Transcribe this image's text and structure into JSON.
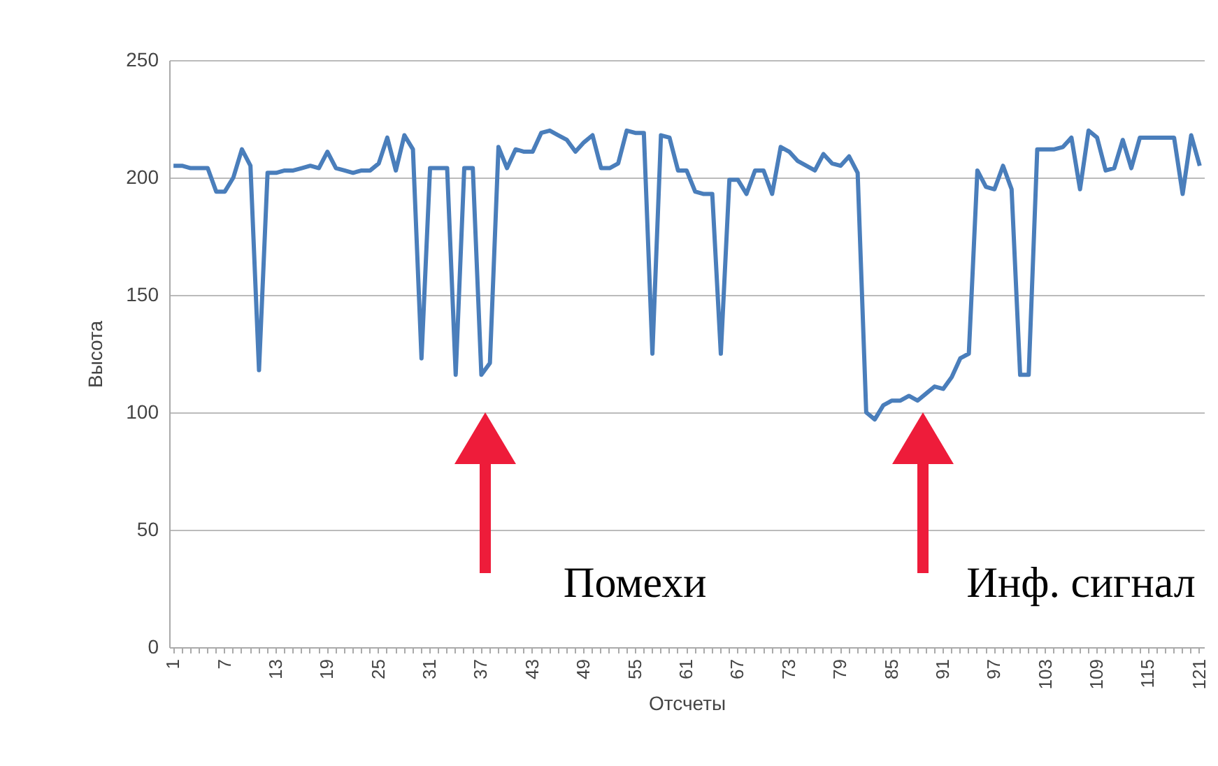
{
  "chart_data": {
    "type": "line",
    "xlabel": "Отсчеты",
    "ylabel": "Высота",
    "categories": [
      "1",
      null,
      null,
      null,
      null,
      null,
      "7",
      null,
      null,
      null,
      null,
      null,
      "13",
      null,
      null,
      null,
      null,
      null,
      "19",
      null,
      null,
      null,
      null,
      null,
      "25",
      null,
      null,
      null,
      null,
      null,
      "31",
      null,
      null,
      null,
      null,
      null,
      "37",
      null,
      null,
      null,
      null,
      null,
      "43",
      null,
      null,
      null,
      null,
      null,
      "49",
      null,
      null,
      null,
      null,
      null,
      "55",
      null,
      null,
      null,
      null,
      null,
      "61",
      null,
      null,
      null,
      null,
      null,
      "67",
      null,
      null,
      null,
      null,
      null,
      "73",
      null,
      null,
      null,
      null,
      null,
      "79",
      null,
      null,
      null,
      null,
      null,
      "85",
      null,
      null,
      null,
      null,
      null,
      "91",
      null,
      null,
      null,
      null,
      null,
      "97",
      null,
      null,
      null,
      null,
      null,
      "103",
      null,
      null,
      null,
      null,
      null,
      "109",
      null,
      null,
      null,
      null,
      null,
      "115",
      null,
      null,
      null,
      null,
      null,
      "121"
    ],
    "series": [
      {
        "color": "#4a7ebb",
        "values": [
          205,
          205,
          204,
          204,
          204,
          194,
          194,
          200,
          212,
          205,
          118,
          202,
          202,
          203,
          203,
          204,
          205,
          204,
          211,
          204,
          203,
          202,
          203,
          203,
          206,
          217,
          203,
          218,
          212,
          123,
          204,
          204,
          204,
          116,
          204,
          204,
          116,
          121,
          213,
          204,
          212,
          211,
          211,
          219,
          220,
          218,
          216,
          211,
          215,
          218,
          204,
          204,
          206,
          220,
          219,
          219,
          125,
          218,
          217,
          203,
          203,
          194,
          193,
          193,
          125,
          199,
          199,
          193,
          203,
          203,
          193,
          213,
          211,
          207,
          205,
          203,
          210,
          206,
          205,
          209,
          202,
          100,
          97,
          103,
          105,
          105,
          107,
          105,
          108,
          111,
          110,
          115,
          123,
          125,
          203,
          196,
          195,
          205,
          195,
          116,
          116,
          212,
          212,
          212,
          213,
          217,
          195,
          220,
          217,
          203,
          204,
          216,
          204,
          217,
          217,
          217,
          217,
          217,
          193,
          218,
          205
        ]
      }
    ],
    "ylim": [
      0,
      250
    ],
    "yticks": [
      0,
      50,
      100,
      150,
      200,
      250
    ],
    "grid": "y",
    "legend": false,
    "annotations": [
      "Помехи",
      "Инф. сигнал"
    ]
  }
}
